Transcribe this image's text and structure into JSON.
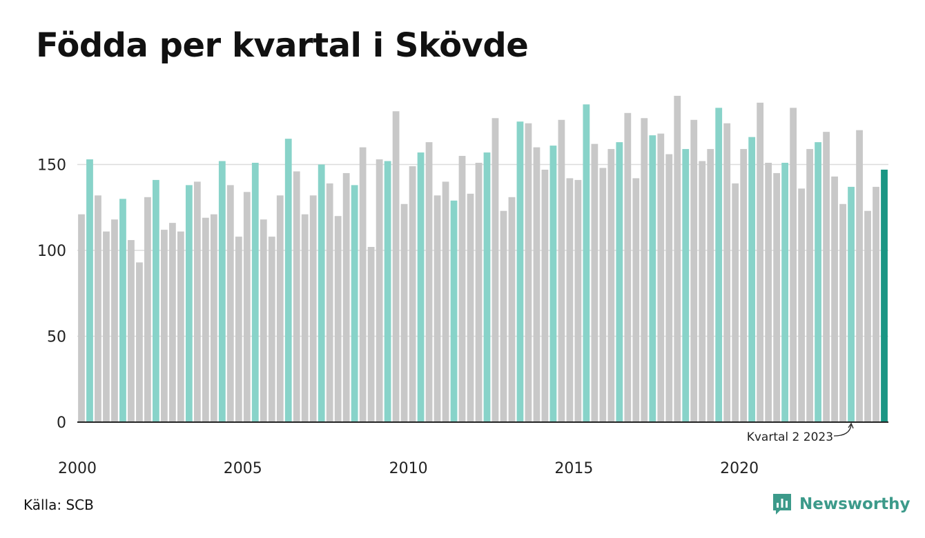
{
  "title": "Födda per kvartal i Skövde",
  "source": "Källa: SCB",
  "brand": {
    "name": "Newsworthy",
    "icon": "newsworthy-logo-icon"
  },
  "colors": {
    "default": "#c8c8c8",
    "q2": "#88d3c9",
    "latest": "#1a9684",
    "grid": "#dcdcdc",
    "axis": "#222222"
  },
  "chart_data": {
    "type": "bar",
    "title": "Födda per kvartal i Skövde",
    "xlabel": "",
    "ylabel": "",
    "ylim": [
      0,
      190
    ],
    "yticks": [
      0,
      50,
      100,
      150
    ],
    "xtick_labels": [
      "2000",
      "2005",
      "2010",
      "2015",
      "2020"
    ],
    "start_year": 2000,
    "grid": "horizontal",
    "highlight": "Kvartal 2 of each year",
    "annotation": {
      "text": "Kvartal 2 2023",
      "target": "2023 K2"
    },
    "values": [
      121,
      153,
      132,
      111,
      118,
      130,
      106,
      93,
      131,
      141,
      112,
      116,
      111,
      138,
      140,
      119,
      121,
      152,
      138,
      108,
      134,
      151,
      118,
      108,
      132,
      165,
      146,
      121,
      132,
      150,
      139,
      120,
      145,
      138,
      160,
      102,
      153,
      152,
      181,
      127,
      149,
      157,
      163,
      132,
      140,
      129,
      155,
      133,
      151,
      157,
      177,
      123,
      131,
      175,
      174,
      160,
      147,
      161,
      176,
      142,
      141,
      185,
      162,
      148,
      159,
      163,
      180,
      142,
      177,
      167,
      168,
      156,
      190,
      159,
      176,
      152,
      159,
      183,
      174,
      139,
      159,
      166,
      186,
      151,
      145,
      151,
      183,
      136,
      159,
      163,
      169,
      143,
      127,
      137,
      170,
      123,
      137,
      147
    ]
  }
}
